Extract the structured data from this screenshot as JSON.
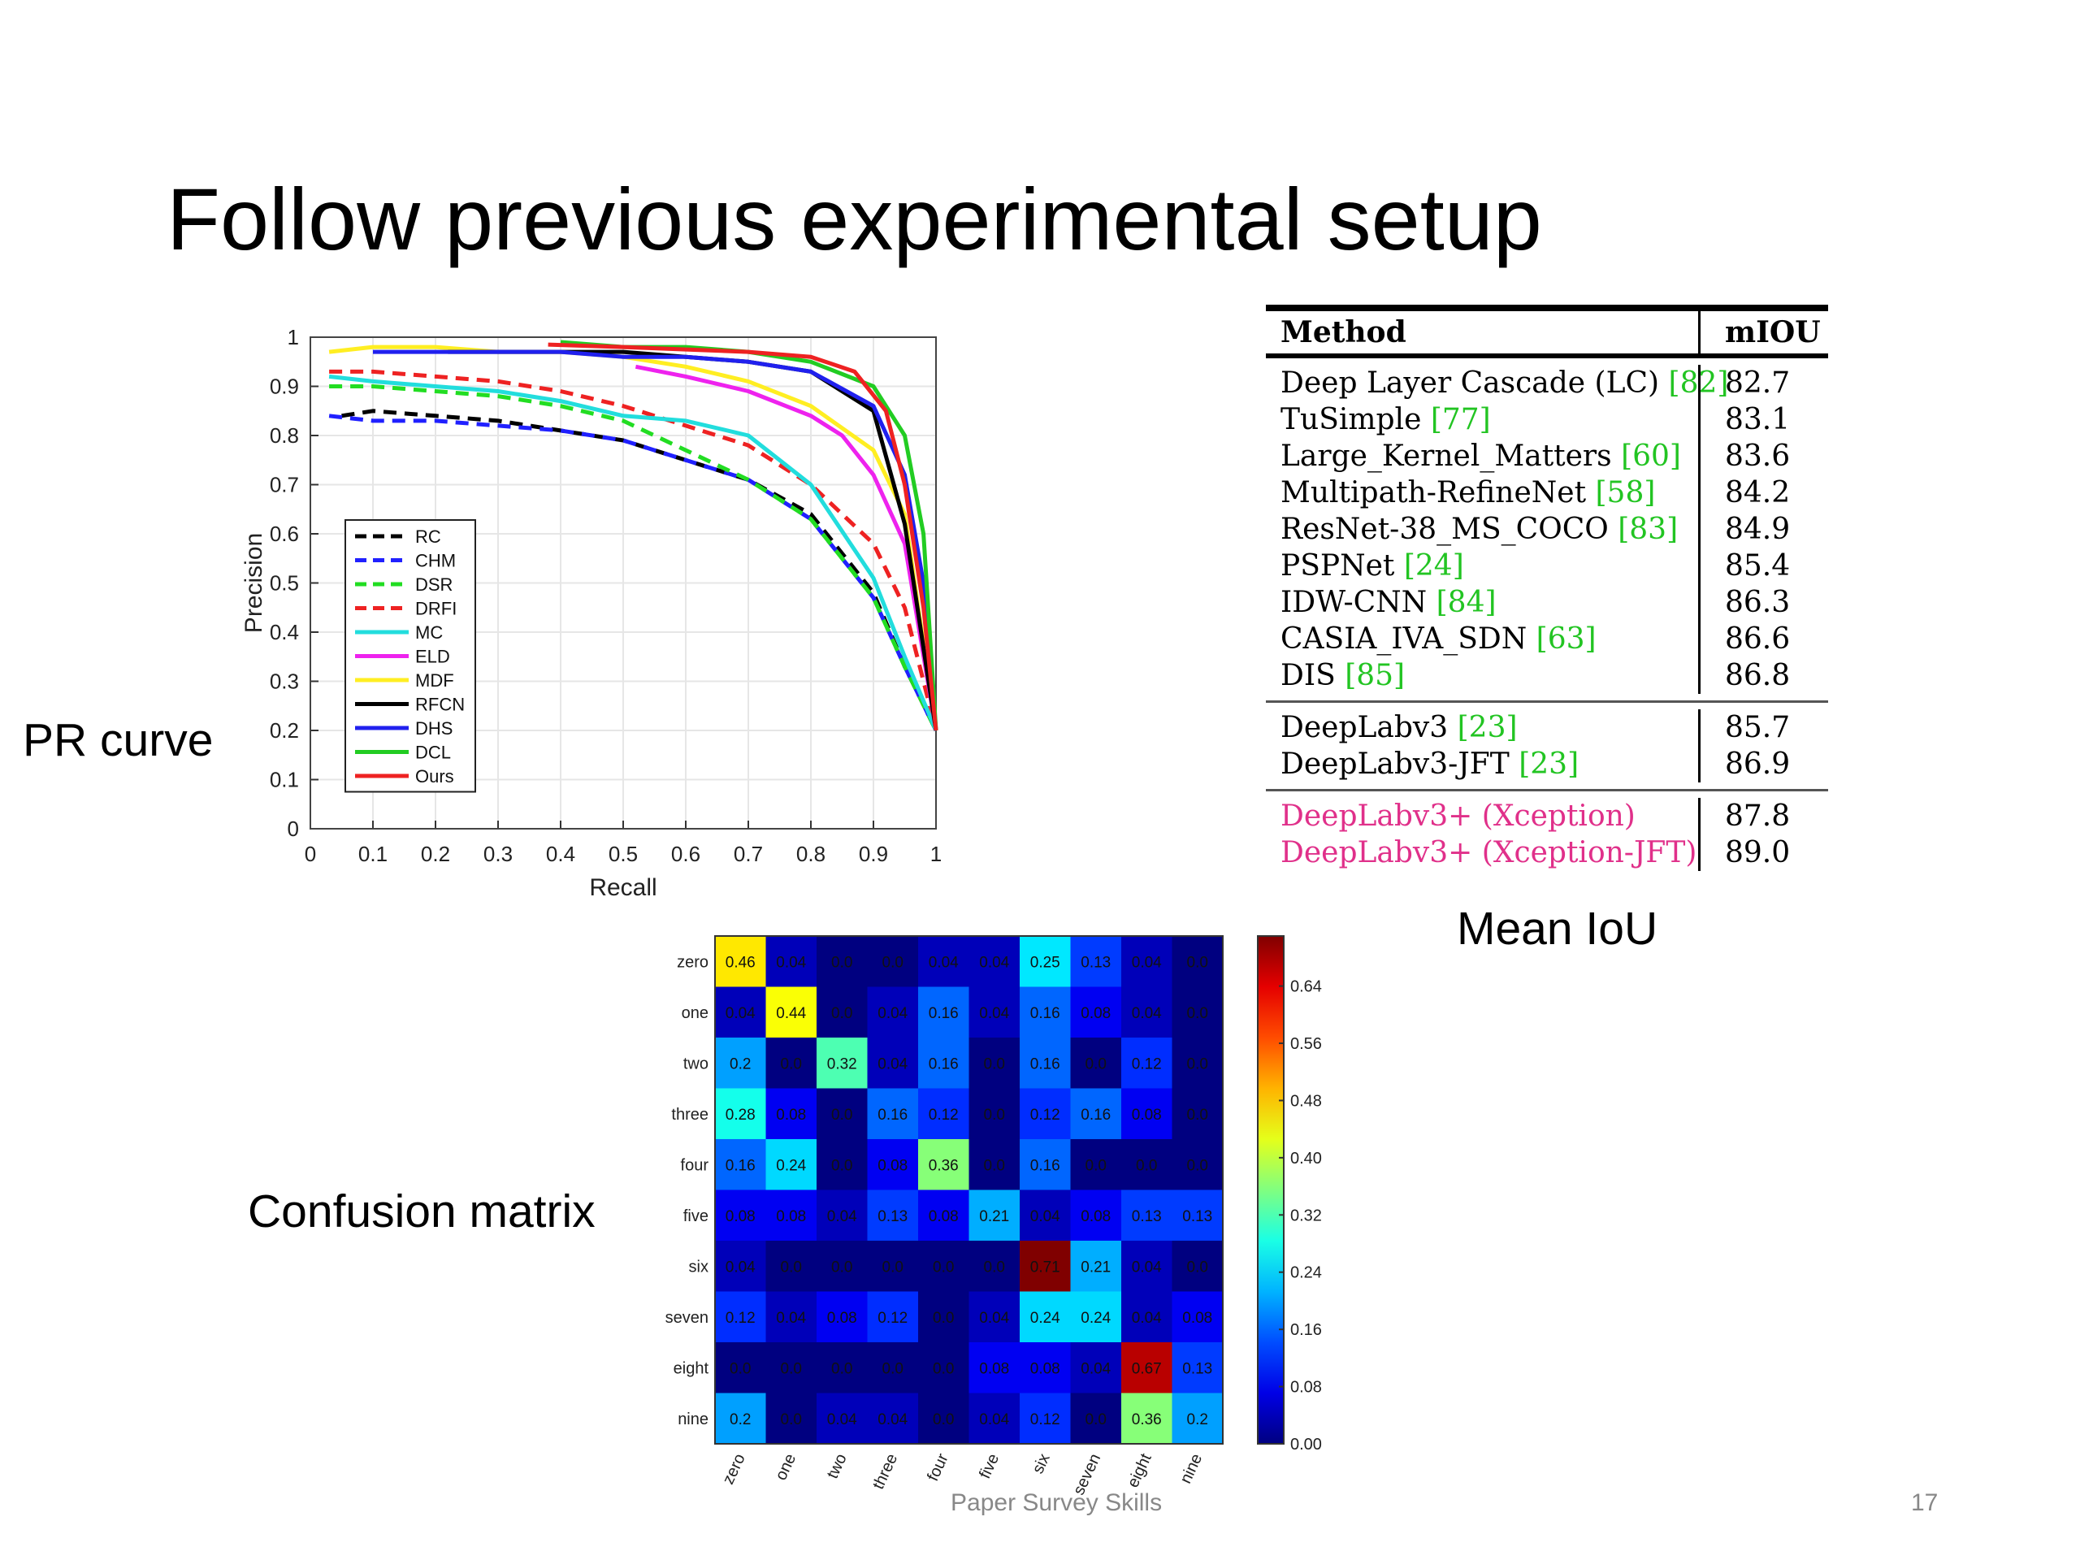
{
  "title": "Follow previous experimental setup",
  "captions": {
    "pr_curve": "PR curve",
    "confusion_matrix": "Confusion matrix",
    "mean_iou": "Mean IoU"
  },
  "footer": {
    "text": "Paper Survey Skills",
    "page_number": "17"
  },
  "table": {
    "headers": {
      "method": "Method",
      "miou": "mIOU"
    },
    "groups": [
      {
        "highlight": false,
        "rows": [
          {
            "method": "Deep Layer Cascade (LC)",
            "ref": "[82]",
            "miou": "82.7"
          },
          {
            "method": "TuSimple",
            "ref": "[77]",
            "miou": "83.1"
          },
          {
            "method": "Large_Kernel_Matters",
            "ref": "[60]",
            "miou": "83.6"
          },
          {
            "method": "Multipath-RefineNet",
            "ref": "[58]",
            "miou": "84.2"
          },
          {
            "method": "ResNet-38_MS_COCO",
            "ref": "[83]",
            "miou": "84.9"
          },
          {
            "method": "PSPNet",
            "ref": "[24]",
            "miou": "85.4"
          },
          {
            "method": "IDW-CNN",
            "ref": "[84]",
            "miou": "86.3"
          },
          {
            "method": "CASIA_IVA_SDN",
            "ref": "[63]",
            "miou": "86.6"
          },
          {
            "method": "DIS",
            "ref": "[85]",
            "miou": "86.8"
          }
        ]
      },
      {
        "highlight": false,
        "rows": [
          {
            "method": "DeepLabv3",
            "ref": "[23]",
            "miou": "85.7"
          },
          {
            "method": "DeepLabv3-JFT",
            "ref": "[23]",
            "miou": "86.9"
          }
        ]
      },
      {
        "highlight": true,
        "rows": [
          {
            "method": "DeepLabv3+ (Xception)",
            "ref": "",
            "miou": "87.8"
          },
          {
            "method": "DeepLabv3+ (Xception-JFT)",
            "ref": "",
            "miou": "89.0"
          }
        ]
      }
    ]
  },
  "chart_data": [
    {
      "type": "line",
      "xlabel": "Recall",
      "ylabel": "Precision",
      "xlim": [
        0,
        1
      ],
      "ylim": [
        0,
        1
      ],
      "x_ticks": [
        "0",
        "0.1",
        "0.2",
        "0.3",
        "0.4",
        "0.5",
        "0.6",
        "0.7",
        "0.8",
        "0.9",
        "1"
      ],
      "y_ticks": [
        "0",
        "0.1",
        "0.2",
        "0.3",
        "0.4",
        "0.5",
        "0.6",
        "0.7",
        "0.8",
        "0.9",
        "1"
      ],
      "grid": true,
      "legend_position": "bottom-left",
      "series": [
        {
          "name": "RC",
          "color": "#000000",
          "dashed": true,
          "points": [
            [
              0.05,
              0.84
            ],
            [
              0.1,
              0.85
            ],
            [
              0.2,
              0.84
            ],
            [
              0.3,
              0.83
            ],
            [
              0.4,
              0.81
            ],
            [
              0.5,
              0.79
            ],
            [
              0.6,
              0.75
            ],
            [
              0.7,
              0.71
            ],
            [
              0.8,
              0.64
            ],
            [
              0.9,
              0.48
            ],
            [
              0.95,
              0.33
            ],
            [
              1.0,
              0.2
            ]
          ]
        },
        {
          "name": "CHM",
          "color": "#2020ff",
          "dashed": true,
          "points": [
            [
              0.03,
              0.84
            ],
            [
              0.1,
              0.83
            ],
            [
              0.2,
              0.83
            ],
            [
              0.3,
              0.82
            ],
            [
              0.4,
              0.81
            ],
            [
              0.5,
              0.79
            ],
            [
              0.6,
              0.75
            ],
            [
              0.7,
              0.71
            ],
            [
              0.8,
              0.63
            ],
            [
              0.9,
              0.47
            ],
            [
              0.95,
              0.33
            ],
            [
              1.0,
              0.2
            ]
          ]
        },
        {
          "name": "DSR",
          "color": "#22dd22",
          "dashed": true,
          "points": [
            [
              0.03,
              0.9
            ],
            [
              0.1,
              0.9
            ],
            [
              0.2,
              0.89
            ],
            [
              0.3,
              0.88
            ],
            [
              0.4,
              0.86
            ],
            [
              0.5,
              0.83
            ],
            [
              0.6,
              0.77
            ],
            [
              0.7,
              0.71
            ],
            [
              0.8,
              0.63
            ],
            [
              0.9,
              0.47
            ],
            [
              0.95,
              0.33
            ],
            [
              1.0,
              0.2
            ]
          ]
        },
        {
          "name": "DRFI",
          "color": "#ee2222",
          "dashed": true,
          "points": [
            [
              0.03,
              0.93
            ],
            [
              0.1,
              0.93
            ],
            [
              0.2,
              0.92
            ],
            [
              0.3,
              0.91
            ],
            [
              0.4,
              0.89
            ],
            [
              0.5,
              0.86
            ],
            [
              0.6,
              0.82
            ],
            [
              0.7,
              0.78
            ],
            [
              0.8,
              0.7
            ],
            [
              0.9,
              0.58
            ],
            [
              0.95,
              0.45
            ],
            [
              1.0,
              0.2
            ]
          ]
        },
        {
          "name": "MC",
          "color": "#22dddd",
          "dashed": false,
          "points": [
            [
              0.03,
              0.92
            ],
            [
              0.1,
              0.91
            ],
            [
              0.2,
              0.9
            ],
            [
              0.3,
              0.89
            ],
            [
              0.4,
              0.87
            ],
            [
              0.5,
              0.84
            ],
            [
              0.6,
              0.83
            ],
            [
              0.7,
              0.8
            ],
            [
              0.8,
              0.7
            ],
            [
              0.9,
              0.51
            ],
            [
              0.95,
              0.35
            ],
            [
              1.0,
              0.2
            ]
          ]
        },
        {
          "name": "ELD",
          "color": "#ee22ee",
          "dashed": false,
          "points": [
            [
              0.52,
              0.94
            ],
            [
              0.6,
              0.92
            ],
            [
              0.7,
              0.89
            ],
            [
              0.8,
              0.84
            ],
            [
              0.85,
              0.8
            ],
            [
              0.9,
              0.72
            ],
            [
              0.95,
              0.58
            ],
            [
              1.0,
              0.2
            ]
          ]
        },
        {
          "name": "MDF",
          "color": "#ffee22",
          "dashed": false,
          "points": [
            [
              0.03,
              0.97
            ],
            [
              0.1,
              0.98
            ],
            [
              0.2,
              0.98
            ],
            [
              0.3,
              0.97
            ],
            [
              0.4,
              0.97
            ],
            [
              0.5,
              0.96
            ],
            [
              0.6,
              0.94
            ],
            [
              0.7,
              0.91
            ],
            [
              0.8,
              0.86
            ],
            [
              0.9,
              0.77
            ],
            [
              0.95,
              0.64
            ],
            [
              1.0,
              0.2
            ]
          ]
        },
        {
          "name": "RFCN",
          "color": "#000000",
          "dashed": false,
          "points": [
            [
              0.22,
              0.97
            ],
            [
              0.3,
              0.97
            ],
            [
              0.4,
              0.97
            ],
            [
              0.5,
              0.97
            ],
            [
              0.6,
              0.96
            ],
            [
              0.7,
              0.95
            ],
            [
              0.8,
              0.93
            ],
            [
              0.9,
              0.85
            ],
            [
              0.95,
              0.62
            ],
            [
              1.0,
              0.2
            ]
          ]
        },
        {
          "name": "DHS",
          "color": "#2020ee",
          "dashed": false,
          "points": [
            [
              0.1,
              0.97
            ],
            [
              0.2,
              0.97
            ],
            [
              0.3,
              0.97
            ],
            [
              0.4,
              0.97
            ],
            [
              0.5,
              0.96
            ],
            [
              0.6,
              0.96
            ],
            [
              0.7,
              0.95
            ],
            [
              0.8,
              0.93
            ],
            [
              0.9,
              0.86
            ],
            [
              0.95,
              0.72
            ],
            [
              0.98,
              0.5
            ],
            [
              1.0,
              0.2
            ]
          ]
        },
        {
          "name": "DCL",
          "color": "#22cc22",
          "dashed": false,
          "points": [
            [
              0.4,
              0.99
            ],
            [
              0.5,
              0.98
            ],
            [
              0.6,
              0.98
            ],
            [
              0.7,
              0.97
            ],
            [
              0.8,
              0.95
            ],
            [
              0.9,
              0.9
            ],
            [
              0.95,
              0.8
            ],
            [
              0.98,
              0.6
            ],
            [
              1.0,
              0.2
            ]
          ]
        },
        {
          "name": "Ours",
          "color": "#ee2222",
          "dashed": false,
          "points": [
            [
              0.38,
              0.985
            ],
            [
              0.5,
              0.98
            ],
            [
              0.6,
              0.975
            ],
            [
              0.7,
              0.97
            ],
            [
              0.8,
              0.96
            ],
            [
              0.87,
              0.93
            ],
            [
              0.92,
              0.85
            ],
            [
              0.95,
              0.7
            ],
            [
              0.98,
              0.45
            ],
            [
              1.0,
              0.2
            ]
          ]
        }
      ]
    },
    {
      "type": "heatmap",
      "categories": [
        "zero",
        "one",
        "two",
        "three",
        "four",
        "five",
        "six",
        "seven",
        "eight",
        "nine"
      ],
      "values": [
        [
          0.46,
          0.04,
          0.0,
          0.0,
          0.04,
          0.04,
          0.25,
          0.13,
          0.04,
          0.0
        ],
        [
          0.04,
          0.44,
          0.0,
          0.04,
          0.16,
          0.04,
          0.16,
          0.08,
          0.04,
          0.0
        ],
        [
          0.2,
          0.0,
          0.32,
          0.04,
          0.16,
          0.0,
          0.16,
          0.0,
          0.12,
          0.0
        ],
        [
          0.28,
          0.08,
          0.0,
          0.16,
          0.12,
          0.0,
          0.12,
          0.16,
          0.08,
          0.0
        ],
        [
          0.16,
          0.24,
          0.0,
          0.08,
          0.36,
          0.0,
          0.16,
          0.0,
          0.0,
          0.0
        ],
        [
          0.08,
          0.08,
          0.04,
          0.13,
          0.08,
          0.21,
          0.04,
          0.08,
          0.13,
          0.13
        ],
        [
          0.04,
          0.0,
          0.0,
          0.0,
          0.0,
          0.0,
          0.71,
          0.21,
          0.04,
          0.0
        ],
        [
          0.12,
          0.04,
          0.08,
          0.12,
          0.0,
          0.04,
          0.24,
          0.24,
          0.04,
          0.08
        ],
        [
          0.0,
          0.0,
          0.0,
          0.0,
          0.0,
          0.08,
          0.08,
          0.04,
          0.67,
          0.13
        ],
        [
          0.2,
          0.0,
          0.04,
          0.04,
          0.0,
          0.04,
          0.12,
          0.0,
          0.36,
          0.2
        ]
      ],
      "colorbar_ticks": [
        "0.00",
        "0.08",
        "0.16",
        "0.24",
        "0.32",
        "0.40",
        "0.48",
        "0.56",
        "0.64"
      ],
      "value_range": [
        0,
        0.71
      ]
    }
  ]
}
